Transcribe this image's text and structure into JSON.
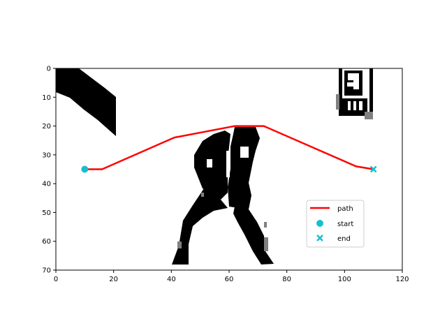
{
  "chart_data": {
    "type": "line",
    "title": "",
    "xlabel": "",
    "ylabel": "",
    "xlim": [
      0,
      120
    ],
    "ylim": [
      70,
      0
    ],
    "x_ticks": [
      0,
      20,
      40,
      60,
      80,
      100,
      120
    ],
    "y_ticks": [
      0,
      10,
      20,
      30,
      40,
      50,
      60,
      70
    ],
    "grid": false,
    "legend_position": "lower-right",
    "background_image": "binary occupancy map (black obstacles on white)",
    "series": [
      {
        "name": "path",
        "kind": "line",
        "color": "#ff0000",
        "x": [
          10,
          16,
          41,
          62,
          72,
          104,
          110
        ],
        "y": [
          35,
          35,
          24,
          20,
          20,
          34,
          35
        ]
      },
      {
        "name": "start",
        "kind": "marker",
        "marker": "circle",
        "color": "#17becf",
        "x": [
          10
        ],
        "y": [
          35
        ]
      },
      {
        "name": "end",
        "kind": "marker",
        "marker": "x",
        "color": "#17becf",
        "x": [
          110
        ],
        "y": [
          35
        ]
      }
    ]
  },
  "legend": {
    "items": [
      {
        "label": "path"
      },
      {
        "label": "start"
      },
      {
        "label": "end"
      }
    ]
  }
}
